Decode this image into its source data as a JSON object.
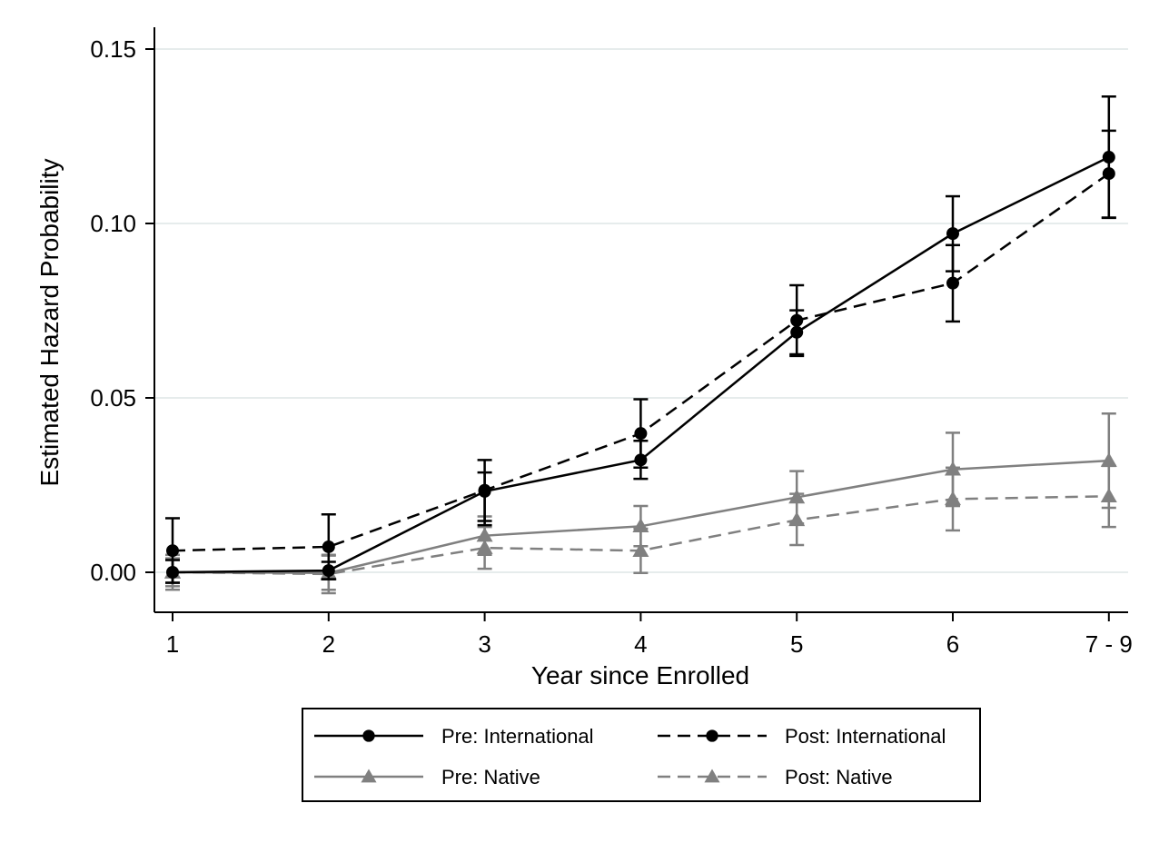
{
  "chart_data": {
    "type": "line",
    "categories": [
      "1",
      "2",
      "3",
      "4",
      "5",
      "6",
      "7 - 9"
    ],
    "xlabel": "Year since Enrolled",
    "ylabel": "Estimated Hazard Probability",
    "ylim": [
      -0.011,
      0.155
    ],
    "yticks": [
      "0.00",
      "0.05",
      "0.10",
      "0.15"
    ],
    "ytick_values": [
      0.0,
      0.05,
      0.1,
      0.15
    ],
    "grid": true,
    "legend_position": "bottom",
    "series": [
      {
        "name": "Pre: International",
        "color": "#000000",
        "dash": "solid",
        "marker": "circle",
        "values": [
          0.0,
          0.0005,
          0.0232,
          0.0322,
          0.0688,
          0.0971,
          0.119
        ],
        "ci_low": [
          -0.003,
          -0.002,
          0.0135,
          0.0268,
          0.0625,
          0.0863,
          0.1017
        ],
        "ci_high": [
          0.0035,
          0.003,
          0.0286,
          0.0377,
          0.0751,
          0.1078,
          0.1364
        ]
      },
      {
        "name": "Post: International",
        "color": "#000000",
        "dash": "dashed",
        "marker": "circle",
        "values": [
          0.0062,
          0.0073,
          0.0235,
          0.0398,
          0.0722,
          0.0829,
          0.1143
        ],
        "ci_low": [
          -0.003,
          -0.002,
          0.0147,
          0.03,
          0.062,
          0.0719,
          0.1016
        ],
        "ci_high": [
          0.0155,
          0.0166,
          0.0322,
          0.0496,
          0.0823,
          0.0938,
          0.1266
        ]
      },
      {
        "name": "Pre: Native",
        "color": "#808080",
        "dash": "solid",
        "marker": "triangle",
        "values": [
          0.0,
          -0.0002,
          0.0105,
          0.0132,
          0.0215,
          0.0295,
          0.032
        ],
        "ci_low": [
          -0.005,
          -0.005,
          0.005,
          0.0075,
          0.014,
          0.019,
          0.0185
        ],
        "ci_high": [
          0.005,
          0.0048,
          0.016,
          0.019,
          0.029,
          0.04,
          0.0455
        ]
      },
      {
        "name": "Post: Native",
        "color": "#808080",
        "dash": "dashed",
        "marker": "triangle",
        "values": [
          0.0,
          -0.0005,
          0.007,
          0.0062,
          0.015,
          0.021,
          0.0218
        ],
        "ci_low": [
          -0.004,
          -0.006,
          0.001,
          -0.0002,
          0.0078,
          0.012,
          0.013
        ],
        "ci_high": [
          0.004,
          0.005,
          0.013,
          0.0125,
          0.0225,
          0.03,
          0.0305
        ]
      }
    ]
  }
}
